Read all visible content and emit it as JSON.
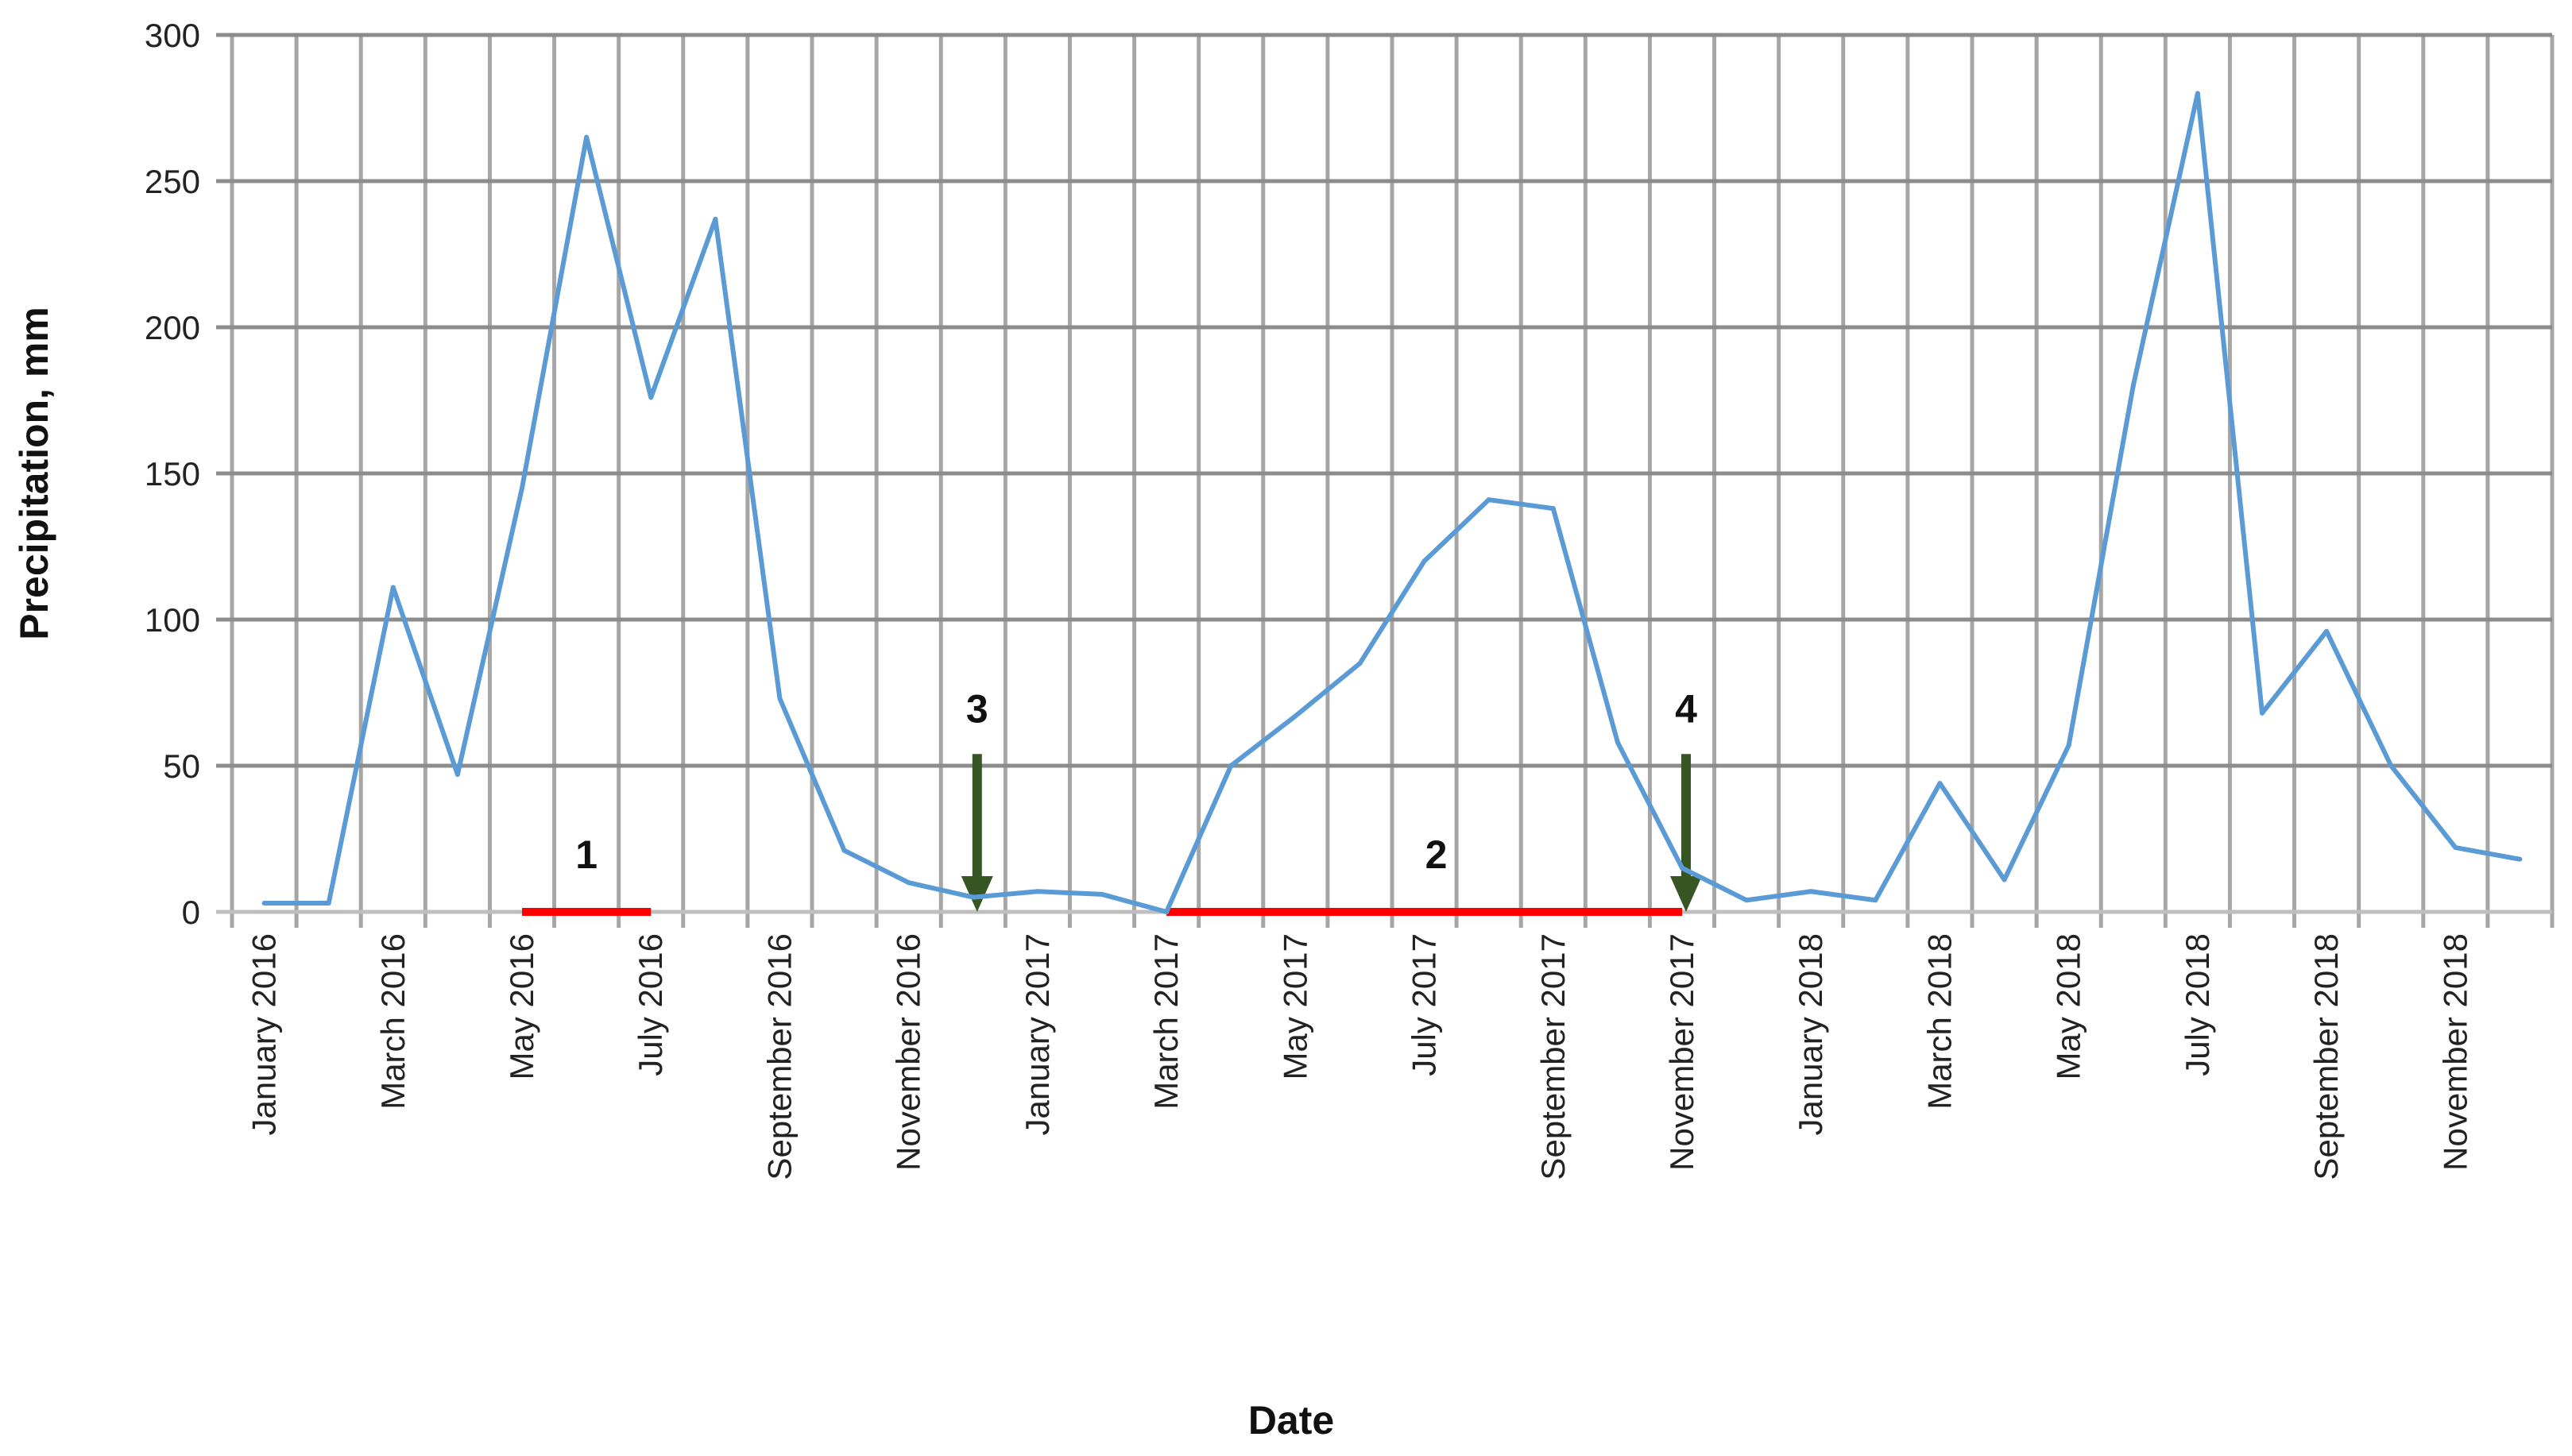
{
  "chart_data": {
    "type": "line",
    "title": "",
    "xlabel": "Date",
    "ylabel": "Precipitation, mm",
    "ylim": [
      0,
      300
    ],
    "yticks": [
      0,
      50,
      100,
      150,
      200,
      250,
      300
    ],
    "grid": true,
    "x": [
      "January 2016",
      "February 2016",
      "March 2016",
      "April 2016",
      "May 2016",
      "June 2016",
      "July 2016",
      "August 2016",
      "September 2016",
      "October 2016",
      "November 2016",
      "December 2016",
      "January 2017",
      "February 2017",
      "March 2017",
      "April 2017",
      "May 2017",
      "June 2017",
      "July 2017",
      "August 2017",
      "September 2017",
      "October 2017",
      "November 2017",
      "December 2017",
      "January 2018",
      "February 2018",
      "March 2018",
      "April 2018",
      "May 2018",
      "June 2018",
      "July 2018",
      "August 2018",
      "September 2018",
      "October 2018",
      "November 2018",
      "December 2018"
    ],
    "xtick_labels": [
      "January 2016",
      "March 2016",
      "May 2016",
      "July 2016",
      "September 2016",
      "November 2016",
      "January 2017",
      "March 2017",
      "May 2017",
      "July 2017",
      "September 2017",
      "November 2017",
      "January 2018",
      "March 2018",
      "May 2018",
      "July 2018",
      "September 2018",
      "November 2018"
    ],
    "series": [
      {
        "values": [
          3,
          3,
          111,
          47,
          145,
          265,
          176,
          237,
          73,
          21,
          10,
          5,
          7,
          6,
          0,
          50,
          67,
          85,
          120,
          141,
          138,
          58,
          15,
          4,
          7,
          4,
          44,
          11,
          57,
          180,
          280,
          68,
          96,
          50,
          22,
          18
        ],
        "color": "#5b9bd5"
      }
    ],
    "annotations": [
      {
        "label": "1",
        "type": "period-bar",
        "from": "May 2016",
        "to": "July 2016",
        "color": "#ff0000"
      },
      {
        "label": "2",
        "type": "period-bar",
        "from": "March 2017",
        "to": "November 2017",
        "color": "#ff0000"
      },
      {
        "label": "3",
        "type": "arrow",
        "at": "December 2016",
        "color": "#375623"
      },
      {
        "label": "4",
        "type": "arrow",
        "at": "November 2017",
        "color": "#375623"
      }
    ]
  }
}
